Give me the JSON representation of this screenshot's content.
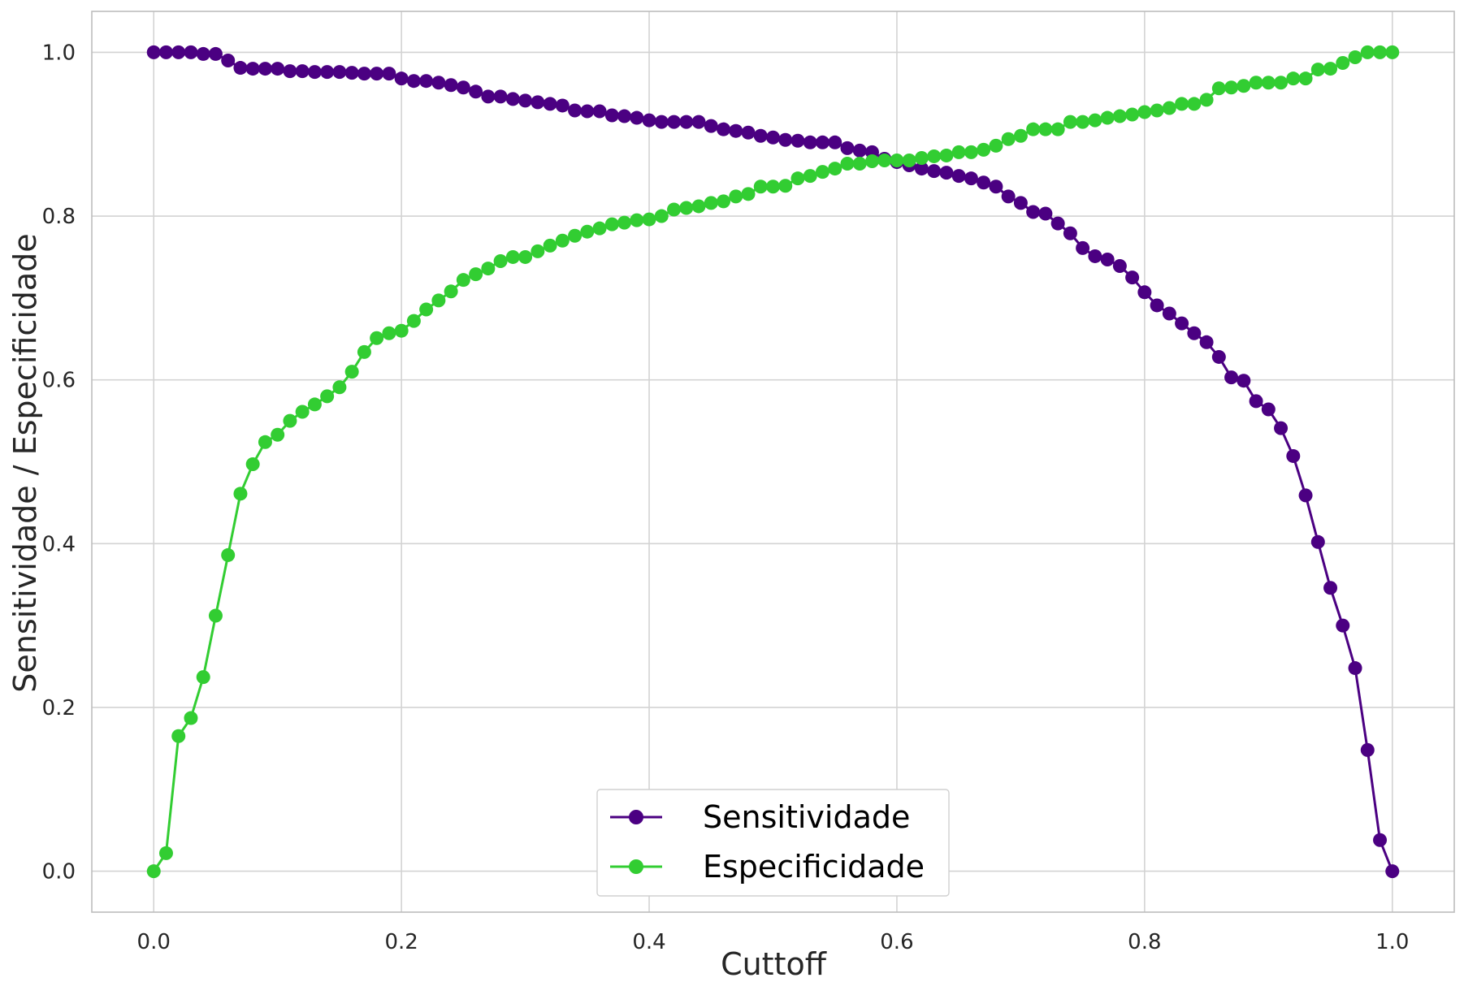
{
  "chart_data": {
    "type": "line",
    "title": "",
    "xlabel": "Cuttoff",
    "ylabel": "Sensitividade / Especificidade",
    "xlim": [
      -0.05,
      1.05
    ],
    "ylim": [
      -0.05,
      1.05
    ],
    "grid": true,
    "legend_position": "bottom-center",
    "x_ticks": [
      0.0,
      0.2,
      0.4,
      0.6,
      0.8,
      1.0
    ],
    "x_tick_labels": [
      "0.0",
      "0.2",
      "0.4",
      "0.6",
      "0.8",
      "1.0"
    ],
    "y_ticks": [
      0.0,
      0.2,
      0.4,
      0.6,
      0.8,
      1.0
    ],
    "y_tick_labels": [
      "0.0",
      "0.2",
      "0.4",
      "0.6",
      "0.8",
      "1.0"
    ],
    "x_start": 0.0,
    "x_step": 0.01,
    "series": [
      {
        "name": "Sensitividade",
        "color": "#4b0082",
        "marker": "circle",
        "values": [
          1.0,
          1.0,
          1.0,
          1.0,
          0.998,
          0.998,
          0.99,
          0.981,
          0.98,
          0.98,
          0.98,
          0.977,
          0.977,
          0.976,
          0.976,
          0.976,
          0.975,
          0.974,
          0.974,
          0.974,
          0.968,
          0.965,
          0.965,
          0.963,
          0.96,
          0.957,
          0.952,
          0.946,
          0.946,
          0.943,
          0.941,
          0.939,
          0.937,
          0.935,
          0.929,
          0.928,
          0.928,
          0.923,
          0.922,
          0.92,
          0.917,
          0.915,
          0.915,
          0.915,
          0.915,
          0.91,
          0.906,
          0.904,
          0.902,
          0.898,
          0.896,
          0.893,
          0.892,
          0.89,
          0.89,
          0.89,
          0.883,
          0.88,
          0.878,
          0.87,
          0.866,
          0.862,
          0.858,
          0.855,
          0.853,
          0.849,
          0.846,
          0.841,
          0.836,
          0.824,
          0.816,
          0.805,
          0.803,
          0.791,
          0.779,
          0.761,
          0.751,
          0.747,
          0.739,
          0.725,
          0.707,
          0.691,
          0.681,
          0.669,
          0.657,
          0.646,
          0.628,
          0.603,
          0.599,
          0.574,
          0.564,
          0.541,
          0.507,
          0.459,
          0.402,
          0.346,
          0.3,
          0.248,
          0.148,
          0.038,
          0.0
        ]
      },
      {
        "name": "Especificidade",
        "color": "#32cd32",
        "marker": "circle",
        "values": [
          0.0,
          0.022,
          0.165,
          0.187,
          0.237,
          0.312,
          0.386,
          0.461,
          0.497,
          0.524,
          0.533,
          0.55,
          0.561,
          0.57,
          0.58,
          0.591,
          0.61,
          0.634,
          0.651,
          0.657,
          0.66,
          0.672,
          0.686,
          0.697,
          0.708,
          0.722,
          0.729,
          0.736,
          0.745,
          0.75,
          0.75,
          0.757,
          0.764,
          0.77,
          0.776,
          0.781,
          0.785,
          0.79,
          0.792,
          0.795,
          0.796,
          0.8,
          0.808,
          0.81,
          0.812,
          0.816,
          0.818,
          0.824,
          0.827,
          0.836,
          0.836,
          0.837,
          0.846,
          0.849,
          0.854,
          0.858,
          0.864,
          0.864,
          0.867,
          0.868,
          0.868,
          0.868,
          0.871,
          0.873,
          0.874,
          0.878,
          0.878,
          0.881,
          0.886,
          0.894,
          0.898,
          0.906,
          0.906,
          0.906,
          0.915,
          0.915,
          0.917,
          0.92,
          0.922,
          0.924,
          0.927,
          0.929,
          0.932,
          0.937,
          0.937,
          0.942,
          0.956,
          0.957,
          0.959,
          0.963,
          0.963,
          0.963,
          0.968,
          0.968,
          0.979,
          0.98,
          0.987,
          0.994,
          1.0,
          1.0,
          1.0
        ]
      }
    ]
  },
  "style": {
    "grid_color": "#d3d3d3",
    "axis_color": "#bdbdbd",
    "tick_text_color": "#262626",
    "label_color": "#262626",
    "legend_border_color": "#d0d0d0"
  }
}
